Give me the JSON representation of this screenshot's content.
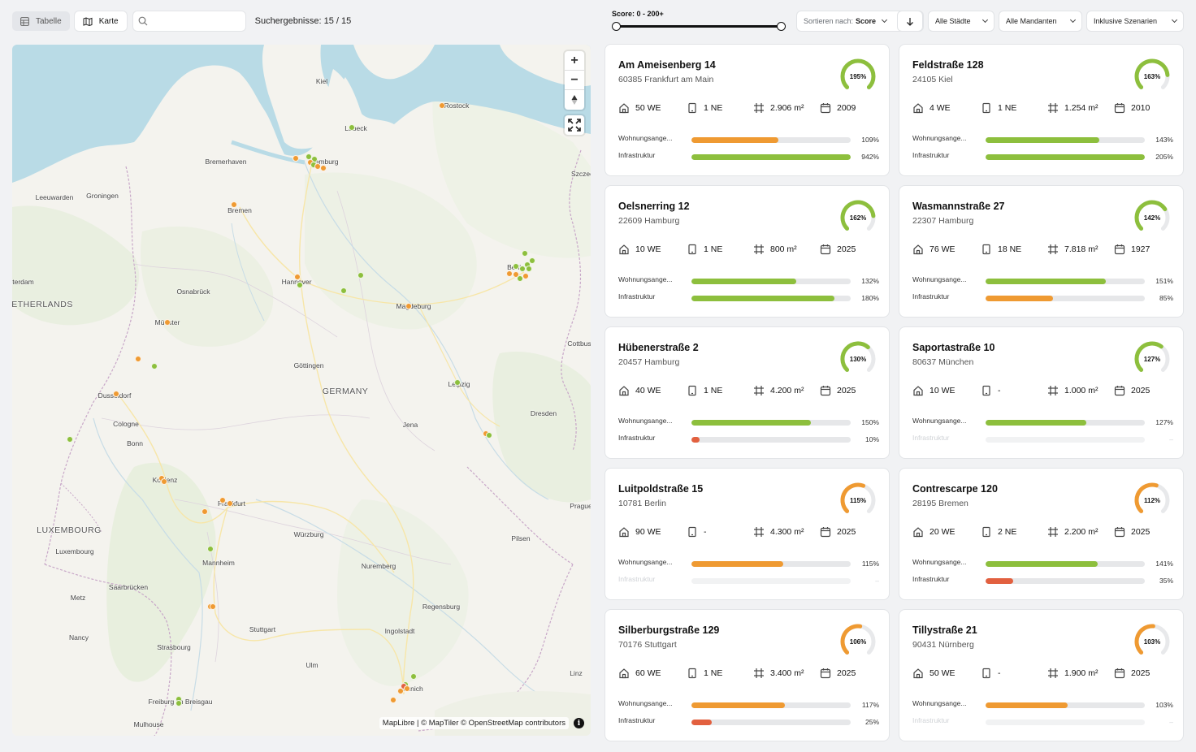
{
  "toolbar": {
    "view_table": "Tabelle",
    "view_map": "Karte",
    "search_placeholder": "",
    "results": "Suchergebnisse: 15 / 15"
  },
  "filters": {
    "score_label": "Score: 0 - 200+",
    "score_min": 0,
    "score_max_fraction": 1.0,
    "sort_prefix": "Sortieren nach:",
    "sort_value": "Score",
    "cities": "Alle Städte",
    "tenants": "Alle Mandanten",
    "scenarios": "Inklusive Szenarien"
  },
  "map": {
    "attribution": "MapLibre | © MapTiler © OpenStreetMap contributors",
    "info_icon": "i",
    "places": [
      {
        "name": "Kiel",
        "type": "city"
      },
      {
        "name": "Rostock",
        "type": "city"
      },
      {
        "name": "Lübeck",
        "type": "city"
      },
      {
        "name": "Bremerhaven",
        "type": "city"
      },
      {
        "name": "Hamburg",
        "type": "city"
      },
      {
        "name": "Szczecin",
        "type": "city"
      },
      {
        "name": "Leeuwarden",
        "type": "city"
      },
      {
        "name": "Groningen",
        "type": "city"
      },
      {
        "name": "Bremen",
        "type": "city"
      },
      {
        "name": "Amsterdam",
        "type": "city"
      },
      {
        "name": "Hannover",
        "type": "city"
      },
      {
        "name": "Berlin",
        "type": "city"
      },
      {
        "name": "Osnabrück",
        "type": "city"
      },
      {
        "name": "NETHERLANDS",
        "type": "country"
      },
      {
        "name": "Magdeburg",
        "type": "city"
      },
      {
        "name": "Münster",
        "type": "city"
      },
      {
        "name": "Cottbus",
        "type": "city"
      },
      {
        "name": "Göttingen",
        "type": "city"
      },
      {
        "name": "GERMANY",
        "type": "country"
      },
      {
        "name": "Leipzig",
        "type": "city"
      },
      {
        "name": "Dusseldorf",
        "type": "city"
      },
      {
        "name": "Dresden",
        "type": "city"
      },
      {
        "name": "Cologne",
        "type": "city"
      },
      {
        "name": "Jena",
        "type": "city"
      },
      {
        "name": "Bonn",
        "type": "city"
      },
      {
        "name": "Koblenz",
        "type": "city"
      },
      {
        "name": "Frankfurt",
        "type": "city"
      },
      {
        "name": "Prague",
        "type": "city"
      },
      {
        "name": "LUXEMBOURG",
        "type": "country"
      },
      {
        "name": "Würzburg",
        "type": "city"
      },
      {
        "name": "Luxembourg",
        "type": "city"
      },
      {
        "name": "Pilsen",
        "type": "city"
      },
      {
        "name": "Mannheim",
        "type": "city"
      },
      {
        "name": "Nuremberg",
        "type": "city"
      },
      {
        "name": "Saarbrücken",
        "type": "city"
      },
      {
        "name": "Metz",
        "type": "city"
      },
      {
        "name": "Regensburg",
        "type": "city"
      },
      {
        "name": "Stuttgart",
        "type": "city"
      },
      {
        "name": "Ingolstadt",
        "type": "city"
      },
      {
        "name": "Nancy",
        "type": "city"
      },
      {
        "name": "Strasbourg",
        "type": "city"
      },
      {
        "name": "Ulm",
        "type": "city"
      },
      {
        "name": "Linz",
        "type": "city"
      },
      {
        "name": "Munich",
        "type": "city"
      },
      {
        "name": "Freiburg im Breisgau",
        "type": "city"
      },
      {
        "name": "Mulhouse",
        "type": "city"
      }
    ]
  },
  "colors": {
    "green": "#8dbf3d",
    "orange": "#ef9a32",
    "red": "#e2603f",
    "track": "#e6e7e9"
  },
  "icons": {
    "units": "home-icon",
    "commercial": "building-icon",
    "area": "area-grid-icon",
    "year": "calendar-icon"
  },
  "metric_labels": {
    "housing": "Wohnungsange...",
    "infrastructure": "Infrastruktur"
  },
  "cards": [
    {
      "title": "Am Ameisenberg 14",
      "address": "60385 Frankfurt am Main",
      "score": "195%",
      "score_fraction": 1.0,
      "score_color": "green",
      "units": "50 WE",
      "commercial": "1 NE",
      "area": "2.906 m²",
      "year": "2009",
      "housing": {
        "value": "109%",
        "fraction": 0.545,
        "color": "orange"
      },
      "infra": {
        "value": "942%",
        "fraction": 1.0,
        "color": "green"
      }
    },
    {
      "title": "Feldstraße 128",
      "address": "24105 Kiel",
      "score": "163%",
      "score_fraction": 0.815,
      "score_color": "green",
      "units": "4 WE",
      "commercial": "1 NE",
      "area": "1.254 m²",
      "year": "2010",
      "housing": {
        "value": "143%",
        "fraction": 0.715,
        "color": "green"
      },
      "infra": {
        "value": "205%",
        "fraction": 1.0,
        "color": "green"
      }
    },
    {
      "title": "Oelsnerring 12",
      "address": "22609 Hamburg",
      "score": "162%",
      "score_fraction": 0.81,
      "score_color": "green",
      "units": "10 WE",
      "commercial": "1 NE",
      "area": "800 m²",
      "year": "2025",
      "housing": {
        "value": "132%",
        "fraction": 0.66,
        "color": "green"
      },
      "infra": {
        "value": "180%",
        "fraction": 0.9,
        "color": "green"
      }
    },
    {
      "title": "Wasmannstraße 27",
      "address": "22307 Hamburg",
      "score": "142%",
      "score_fraction": 0.71,
      "score_color": "green",
      "units": "76 WE",
      "commercial": "18 NE",
      "area": "7.818 m²",
      "year": "1927",
      "housing": {
        "value": "151%",
        "fraction": 0.755,
        "color": "green"
      },
      "infra": {
        "value": "85%",
        "fraction": 0.425,
        "color": "orange"
      }
    },
    {
      "title": "Hübenerstraße 2",
      "address": "20457 Hamburg",
      "score": "130%",
      "score_fraction": 0.65,
      "score_color": "green",
      "units": "40 WE",
      "commercial": "1 NE",
      "area": "4.200 m²",
      "year": "2025",
      "housing": {
        "value": "150%",
        "fraction": 0.75,
        "color": "green"
      },
      "infra": {
        "value": "10%",
        "fraction": 0.05,
        "color": "red"
      }
    },
    {
      "title": "Saportastraße 10",
      "address": "80637 München",
      "score": "127%",
      "score_fraction": 0.635,
      "score_color": "green",
      "units": "10 WE",
      "commercial": "-",
      "area": "1.000 m²",
      "year": "2025",
      "housing": {
        "value": "127%",
        "fraction": 0.635,
        "color": "green"
      },
      "infra": {
        "value": "–",
        "fraction": 0,
        "color": "none"
      }
    },
    {
      "title": "Luitpoldstraße 15",
      "address": "10781 Berlin",
      "score": "115%",
      "score_fraction": 0.575,
      "score_color": "orange",
      "units": "90 WE",
      "commercial": "-",
      "area": "4.300 m²",
      "year": "2025",
      "housing": {
        "value": "115%",
        "fraction": 0.575,
        "color": "orange"
      },
      "infra": {
        "value": "–",
        "fraction": 0,
        "color": "none"
      }
    },
    {
      "title": "Contrescarpe 120",
      "address": "28195 Bremen",
      "score": "112%",
      "score_fraction": 0.56,
      "score_color": "orange",
      "units": "20 WE",
      "commercial": "2 NE",
      "area": "2.200 m²",
      "year": "2025",
      "housing": {
        "value": "141%",
        "fraction": 0.705,
        "color": "green"
      },
      "infra": {
        "value": "35%",
        "fraction": 0.175,
        "color": "red"
      }
    },
    {
      "title": "Silberburgstraße 129",
      "address": "70176 Stuttgart",
      "score": "106%",
      "score_fraction": 0.53,
      "score_color": "orange",
      "units": "60 WE",
      "commercial": "1 NE",
      "area": "3.400 m²",
      "year": "2025",
      "housing": {
        "value": "117%",
        "fraction": 0.585,
        "color": "orange"
      },
      "infra": {
        "value": "25%",
        "fraction": 0.125,
        "color": "red"
      }
    },
    {
      "title": "Tillystraße 21",
      "address": "90431 Nürnberg",
      "score": "103%",
      "score_fraction": 0.515,
      "score_color": "orange",
      "units": "50 WE",
      "commercial": "-",
      "area": "1.900 m²",
      "year": "2025",
      "housing": {
        "value": "103%",
        "fraction": 0.515,
        "color": "orange"
      },
      "infra": {
        "value": "–",
        "fraction": 0,
        "color": "none"
      }
    }
  ]
}
